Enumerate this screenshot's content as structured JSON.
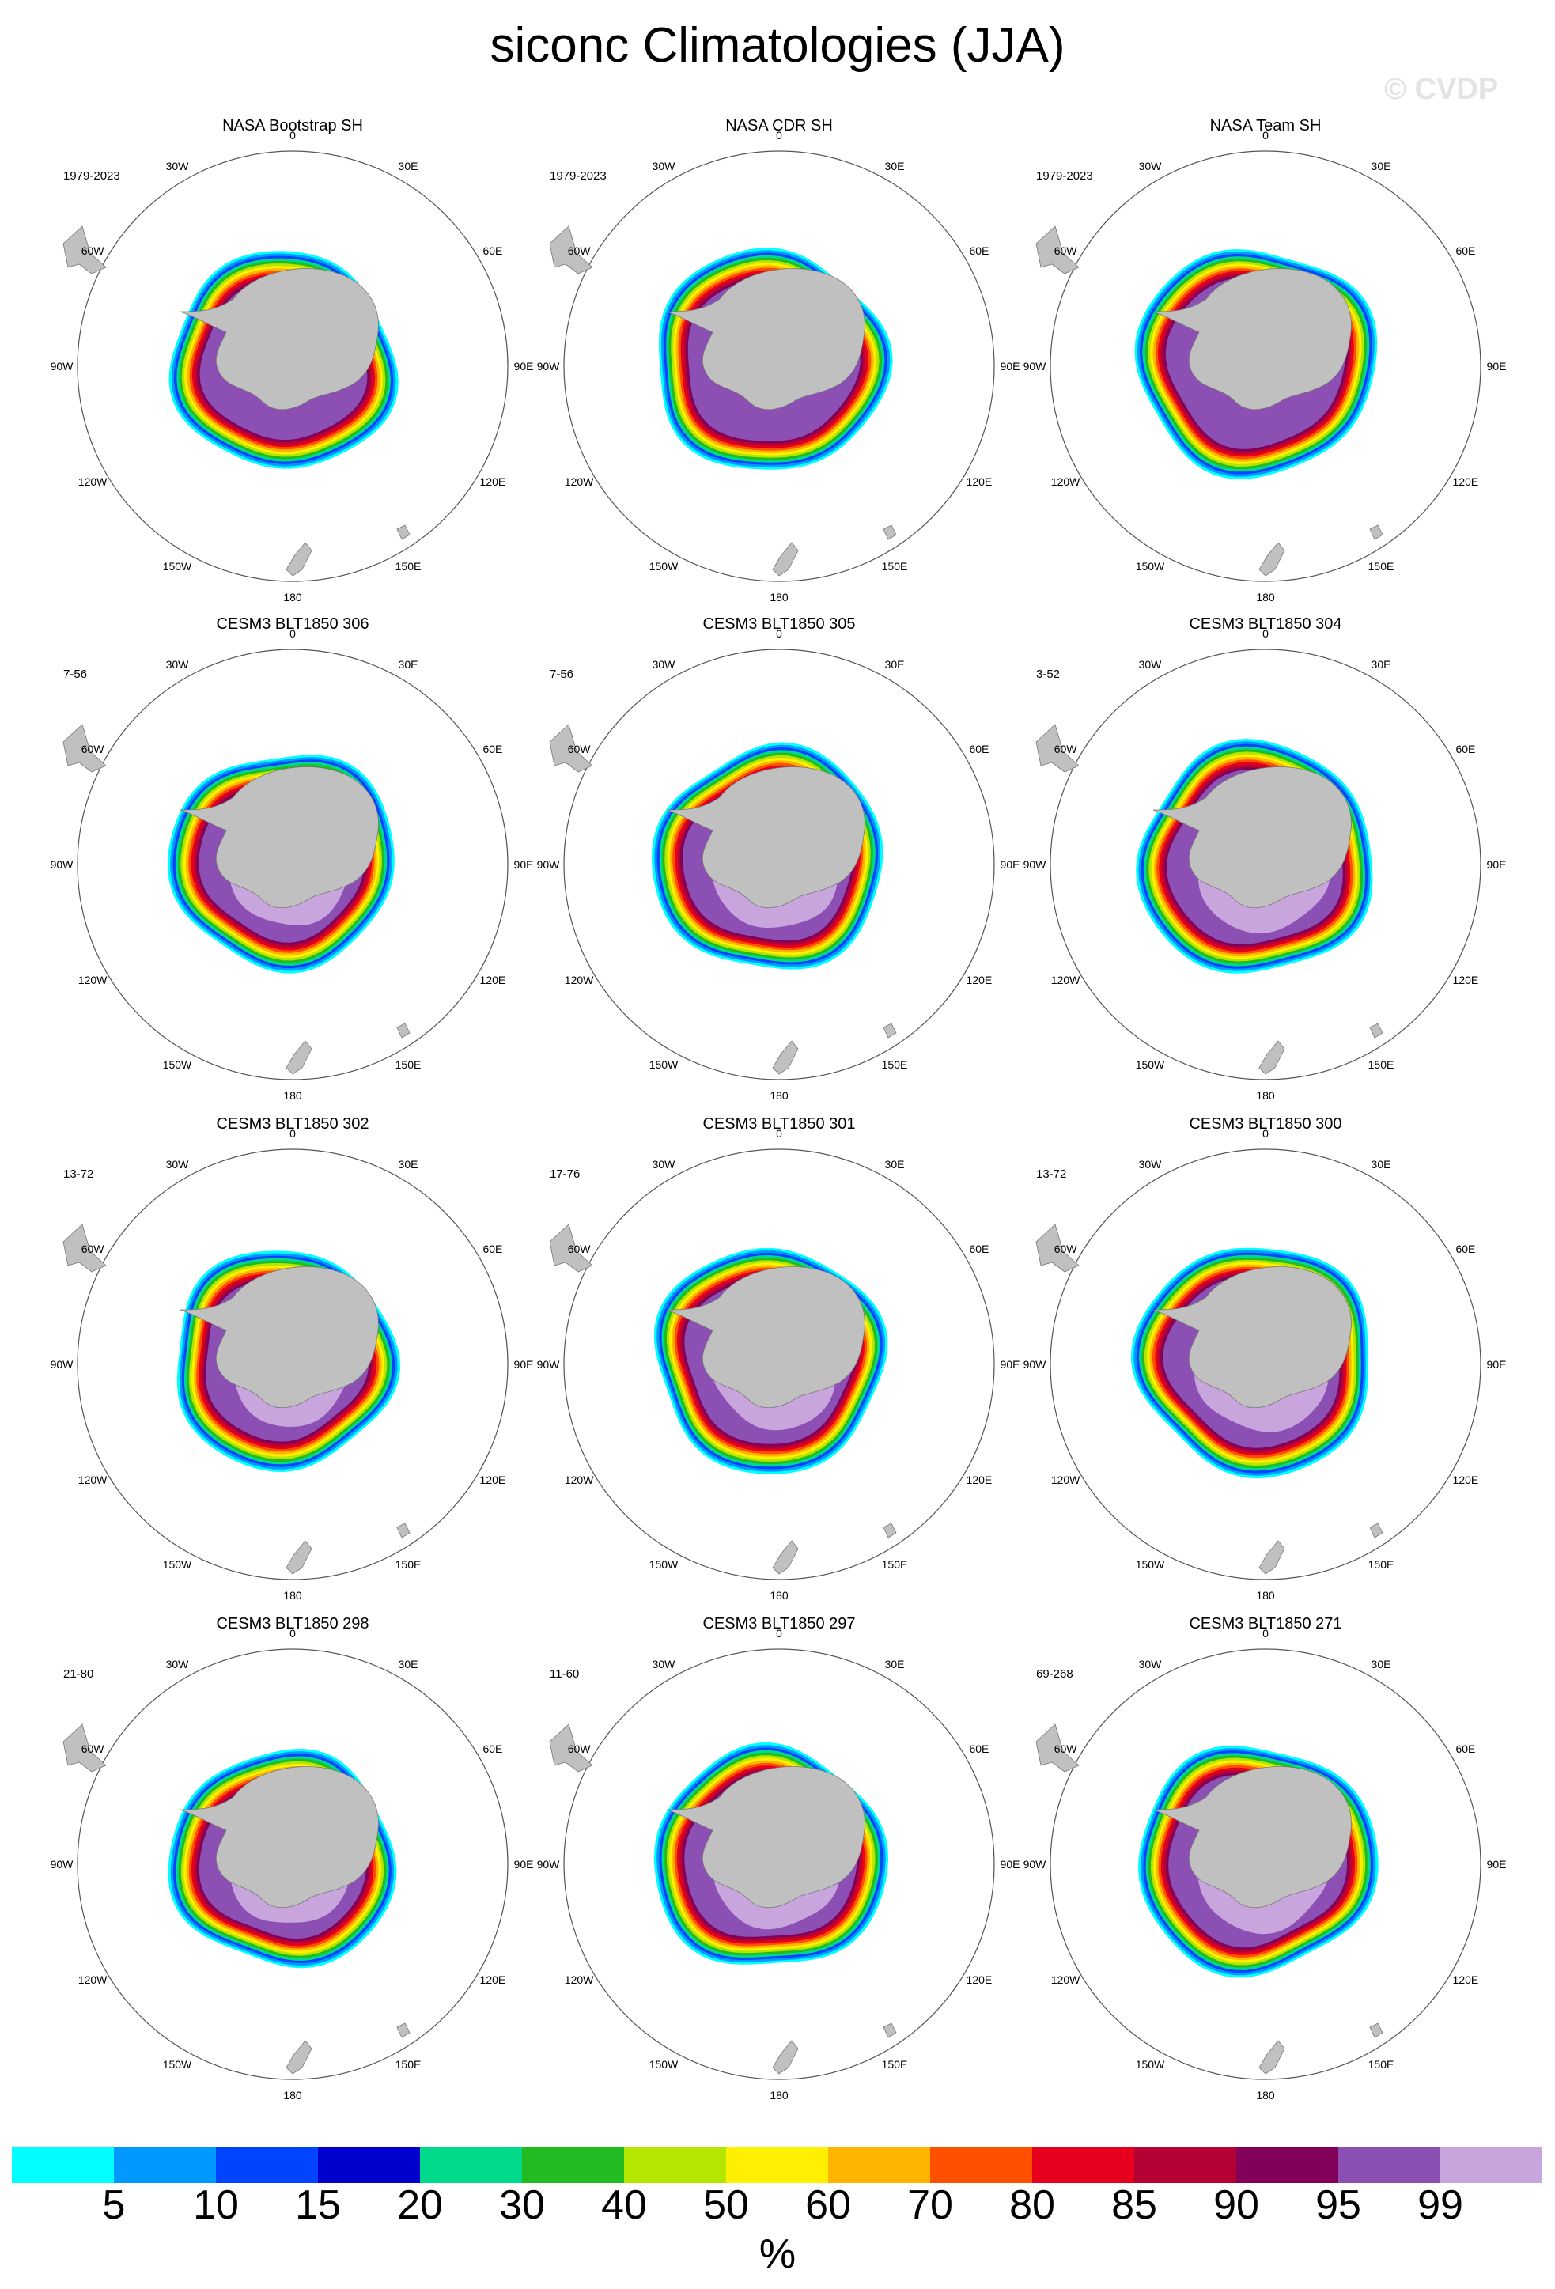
{
  "figure": {
    "title": "siconc Climatologies (JJA)",
    "watermark": "© CVDP"
  },
  "panels": [
    {
      "title": "NASA Bootstrap SH",
      "period": "1979-2023"
    },
    {
      "title": "NASA CDR SH",
      "period": "1979-2023"
    },
    {
      "title": "NASA Team SH",
      "period": "1979-2023"
    },
    {
      "title": "CESM3 BLT1850 306",
      "period": "7-56"
    },
    {
      "title": "CESM3 BLT1850 305",
      "period": "7-56"
    },
    {
      "title": "CESM3 BLT1850 304",
      "period": "3-52"
    },
    {
      "title": "CESM3 BLT1850 302",
      "period": "13-72"
    },
    {
      "title": "CESM3 BLT1850 301",
      "period": "17-76"
    },
    {
      "title": "CESM3 BLT1850 300",
      "period": "13-72"
    },
    {
      "title": "CESM3 BLT1850 298",
      "period": "21-80"
    },
    {
      "title": "CESM3 BLT1850 297",
      "period": "11-60"
    },
    {
      "title": "CESM3 BLT1850 271",
      "period": "69-268"
    }
  ],
  "longitude_labels": [
    "0",
    "30E",
    "60E",
    "90E",
    "120E",
    "150E",
    "180",
    "150W",
    "120W",
    "90W",
    "60W",
    "30W"
  ],
  "colorbar": {
    "units": "%",
    "ticks": [
      "5",
      "10",
      "15",
      "20",
      "30",
      "40",
      "50",
      "60",
      "70",
      "80",
      "85",
      "90",
      "95",
      "99"
    ],
    "colors": [
      "#00ffff",
      "#0099ff",
      "#0044ff",
      "#0000cc",
      "#00d98a",
      "#22bb22",
      "#b4e600",
      "#ffef00",
      "#ffb400",
      "#ff5000",
      "#e6001e",
      "#b40032",
      "#82005a",
      "#8c50b4",
      "#c8a5dc"
    ]
  },
  "colors": {
    "land": "#c0c0c0",
    "ice_edge": "#00ffff"
  }
}
